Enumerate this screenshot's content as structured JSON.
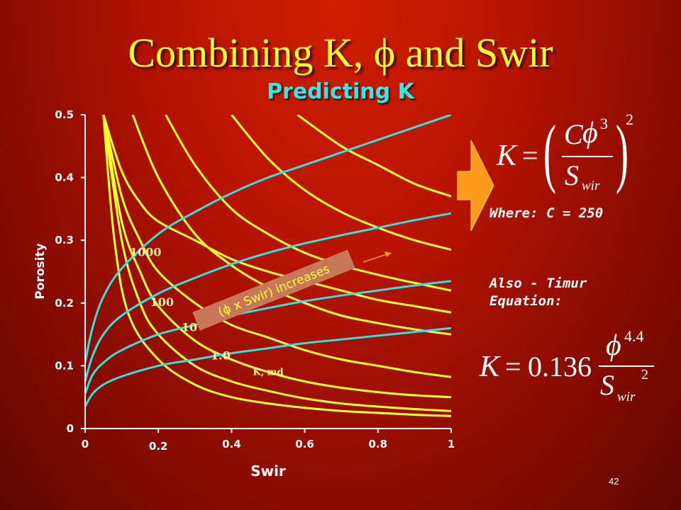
{
  "title": "Combining K, ϕ and Swir",
  "subtitle": "Predicting K",
  "page_number": "42",
  "where_label": "Where: C = 250",
  "also_label": "Also - Timur Equation:",
  "formula1": {
    "lhs": "K",
    "eq": "=",
    "num_c": "C",
    "phi": "ϕ",
    "phi_exp": "3",
    "den": "S",
    "den_sub": "wir",
    "outer_exp": "2"
  },
  "formula2": {
    "lhs": "K",
    "eq": "=",
    "coef": "0.136",
    "phi": "ϕ",
    "phi_exp": "4.4",
    "den": "S",
    "den_sub": "wir",
    "den_exp": "2"
  },
  "colors": {
    "k_curve": "#ffff33",
    "bvw_curve": "#35e0e0",
    "arrow": "#ff9a1a",
    "annotation_box": "#c8785a"
  },
  "chart_data": {
    "type": "line",
    "xlabel": "Swir",
    "ylabel": "Porosity",
    "xlim": [
      0,
      1
    ],
    "ylim": [
      0,
      0.5
    ],
    "x_ticks": [
      "0",
      "0.2",
      "0.4",
      "0.6",
      "0.8",
      "1"
    ],
    "y_ticks": [
      "0",
      "0.1",
      "0.2",
      "0.3",
      "0.4",
      "0.5"
    ],
    "grid": false,
    "k_curves": [
      {
        "label": "",
        "values": [
          [
            0.05,
            0.5
          ],
          [
            0.1,
            0.41
          ],
          [
            0.15,
            0.36
          ],
          [
            0.2,
            0.33
          ],
          [
            0.3,
            0.3
          ],
          [
            0.4,
            0.27
          ],
          [
            0.5,
            0.25
          ],
          [
            0.6,
            0.235
          ],
          [
            0.7,
            0.22
          ],
          [
            0.8,
            0.205
          ],
          [
            0.9,
            0.195
          ],
          [
            1.0,
            0.185
          ]
        ]
      },
      {
        "label": "",
        "values": [
          [
            0.05,
            0.5
          ],
          [
            0.1,
            0.37
          ],
          [
            0.15,
            0.3
          ],
          [
            0.2,
            0.25
          ],
          [
            0.3,
            0.2
          ],
          [
            0.4,
            0.165
          ],
          [
            0.5,
            0.145
          ],
          [
            0.6,
            0.125
          ],
          [
            0.7,
            0.11
          ],
          [
            0.8,
            0.1
          ],
          [
            0.9,
            0.09
          ],
          [
            1.0,
            0.082
          ]
        ]
      },
      {
        "label": "",
        "values": [
          [
            0.05,
            0.5
          ],
          [
            0.1,
            0.33
          ],
          [
            0.15,
            0.25
          ],
          [
            0.2,
            0.195
          ],
          [
            0.3,
            0.14
          ],
          [
            0.4,
            0.11
          ],
          [
            0.5,
            0.09
          ],
          [
            0.6,
            0.075
          ],
          [
            0.7,
            0.065
          ],
          [
            0.8,
            0.058
          ],
          [
            0.9,
            0.053
          ],
          [
            1.0,
            0.05
          ]
        ]
      },
      {
        "label": "",
        "values": [
          [
            0.05,
            0.5
          ],
          [
            0.1,
            0.3
          ],
          [
            0.15,
            0.2
          ],
          [
            0.2,
            0.15
          ],
          [
            0.3,
            0.1
          ],
          [
            0.4,
            0.075
          ],
          [
            0.5,
            0.06
          ],
          [
            0.6,
            0.048
          ],
          [
            0.7,
            0.04
          ],
          [
            0.8,
            0.035
          ],
          [
            0.9,
            0.031
          ],
          [
            1.0,
            0.028
          ]
        ]
      },
      {
        "label": "",
        "values": [
          [
            0.05,
            0.5
          ],
          [
            0.08,
            0.3
          ],
          [
            0.12,
            0.18
          ],
          [
            0.2,
            0.11
          ],
          [
            0.3,
            0.07
          ],
          [
            0.4,
            0.05
          ],
          [
            0.5,
            0.04
          ],
          [
            0.6,
            0.033
          ],
          [
            0.7,
            0.028
          ],
          [
            0.8,
            0.025
          ],
          [
            0.9,
            0.022
          ],
          [
            1.0,
            0.02
          ]
        ]
      },
      {
        "label": "",
        "values": [
          [
            0.4,
            0.5
          ],
          [
            0.5,
            0.43
          ],
          [
            0.6,
            0.38
          ],
          [
            0.7,
            0.345
          ],
          [
            0.8,
            0.32
          ],
          [
            0.9,
            0.3
          ],
          [
            1.0,
            0.285
          ]
        ]
      },
      {
        "label": "",
        "values": [
          [
            0.22,
            0.5
          ],
          [
            0.3,
            0.42
          ],
          [
            0.4,
            0.35
          ],
          [
            0.5,
            0.31
          ],
          [
            0.6,
            0.28
          ],
          [
            0.7,
            0.26
          ],
          [
            0.8,
            0.245
          ],
          [
            0.9,
            0.232
          ],
          [
            1.0,
            0.22
          ]
        ]
      },
      {
        "label": "",
        "values": [
          [
            0.13,
            0.5
          ],
          [
            0.2,
            0.4
          ],
          [
            0.3,
            0.31
          ],
          [
            0.4,
            0.26
          ],
          [
            0.5,
            0.225
          ],
          [
            0.6,
            0.2
          ],
          [
            0.7,
            0.18
          ],
          [
            0.8,
            0.168
          ],
          [
            0.9,
            0.158
          ],
          [
            1.0,
            0.15
          ]
        ]
      },
      {
        "label": "",
        "values": [
          [
            0.58,
            0.5
          ],
          [
            0.7,
            0.45
          ],
          [
            0.8,
            0.42
          ],
          [
            0.9,
            0.39
          ],
          [
            1.0,
            0.37
          ]
        ]
      }
    ],
    "bvw_curves": [
      {
        "values": [
          [
            0.0,
            0.105
          ],
          [
            0.02,
            0.16
          ],
          [
            0.05,
            0.21
          ],
          [
            0.1,
            0.255
          ],
          [
            0.2,
            0.31
          ],
          [
            0.3,
            0.345
          ],
          [
            0.4,
            0.375
          ],
          [
            0.5,
            0.4
          ],
          [
            0.6,
            0.42
          ],
          [
            0.7,
            0.44
          ],
          [
            0.8,
            0.46
          ],
          [
            0.9,
            0.48
          ],
          [
            1.0,
            0.5
          ]
        ]
      },
      {
        "values": [
          [
            0.0,
            0.075
          ],
          [
            0.02,
            0.115
          ],
          [
            0.05,
            0.15
          ],
          [
            0.1,
            0.18
          ],
          [
            0.2,
            0.215
          ],
          [
            0.3,
            0.24
          ],
          [
            0.4,
            0.262
          ],
          [
            0.5,
            0.28
          ],
          [
            0.6,
            0.295
          ],
          [
            0.7,
            0.308
          ],
          [
            0.8,
            0.32
          ],
          [
            0.9,
            0.332
          ],
          [
            1.0,
            0.343
          ]
        ]
      },
      {
        "values": [
          [
            0.0,
            0.055
          ],
          [
            0.02,
            0.085
          ],
          [
            0.05,
            0.105
          ],
          [
            0.1,
            0.125
          ],
          [
            0.2,
            0.15
          ],
          [
            0.3,
            0.165
          ],
          [
            0.4,
            0.18
          ],
          [
            0.5,
            0.192
          ],
          [
            0.6,
            0.203
          ],
          [
            0.7,
            0.212
          ],
          [
            0.8,
            0.22
          ],
          [
            0.9,
            0.228
          ],
          [
            1.0,
            0.235
          ]
        ]
      },
      {
        "values": [
          [
            0.0,
            0.035
          ],
          [
            0.02,
            0.055
          ],
          [
            0.05,
            0.07
          ],
          [
            0.1,
            0.083
          ],
          [
            0.2,
            0.1
          ],
          [
            0.3,
            0.11
          ],
          [
            0.4,
            0.12
          ],
          [
            0.5,
            0.128
          ],
          [
            0.6,
            0.136
          ],
          [
            0.7,
            0.142
          ],
          [
            0.8,
            0.148
          ],
          [
            0.9,
            0.154
          ],
          [
            1.0,
            0.16
          ]
        ]
      }
    ],
    "curve_labels": [
      {
        "text": "1000",
        "x": 0.165,
        "y": 0.275
      },
      {
        "text": "100",
        "x": 0.21,
        "y": 0.195
      },
      {
        "text": "10",
        "x": 0.285,
        "y": 0.155
      },
      {
        "text": "1.0",
        "x": 0.37,
        "y": 0.11
      },
      {
        "text": "K, md",
        "x": 0.5,
        "y": 0.085
      }
    ],
    "annotation": "(ϕ x Swir) increases"
  }
}
